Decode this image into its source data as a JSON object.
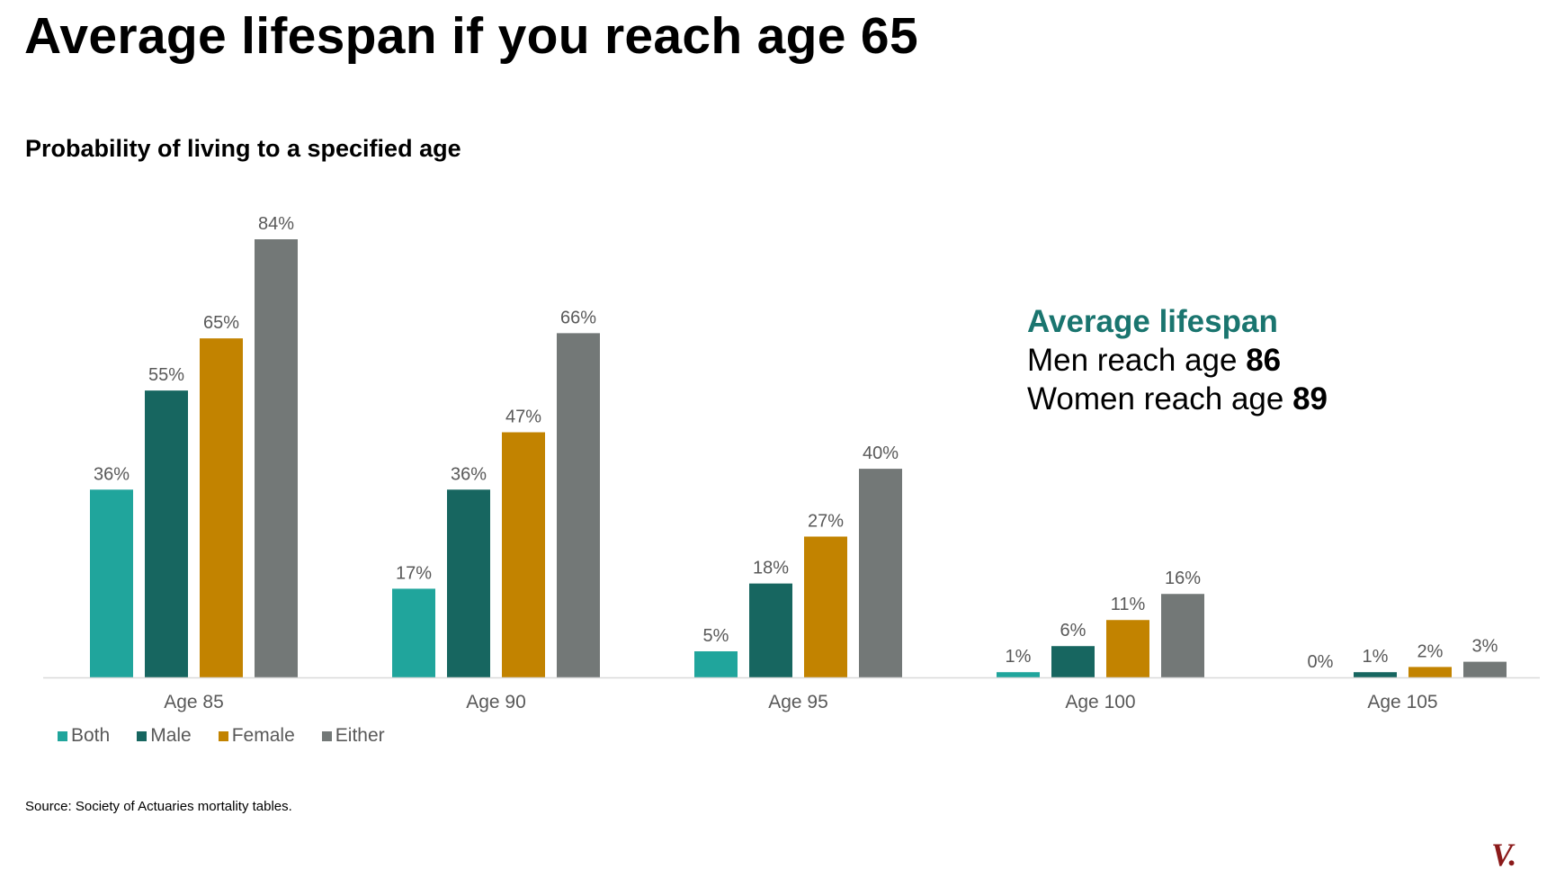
{
  "slide": {
    "title": "Average lifespan if you reach age 65",
    "source": "Source: Society of Actuaries mortality tables."
  },
  "callout": {
    "heading": "Average lifespan",
    "men_prefix": "Men reach age ",
    "men_value": "86",
    "women_prefix": "Women reach age ",
    "women_value": "89"
  },
  "logo": {
    "text": "V."
  },
  "chart_data": {
    "type": "bar",
    "title": "Probability of living to a specified age",
    "xlabel": "",
    "ylabel": "",
    "ylim": [
      0,
      84
    ],
    "grid": false,
    "legend_position": "bottom-left",
    "categories": [
      "Age 85",
      "Age 90",
      "Age 95",
      "Age 100",
      "Age 105"
    ],
    "series": [
      {
        "name": "Both",
        "color": "#20a59c",
        "values": [
          36,
          17,
          5,
          1,
          0
        ]
      },
      {
        "name": "Male",
        "color": "#176660",
        "values": [
          55,
          36,
          18,
          6,
          1
        ]
      },
      {
        "name": "Female",
        "color": "#c28300",
        "values": [
          65,
          47,
          27,
          11,
          2
        ]
      },
      {
        "name": "Either",
        "color": "#737877",
        "values": [
          84,
          66,
          40,
          16,
          3
        ]
      }
    ],
    "value_suffix": "%"
  }
}
